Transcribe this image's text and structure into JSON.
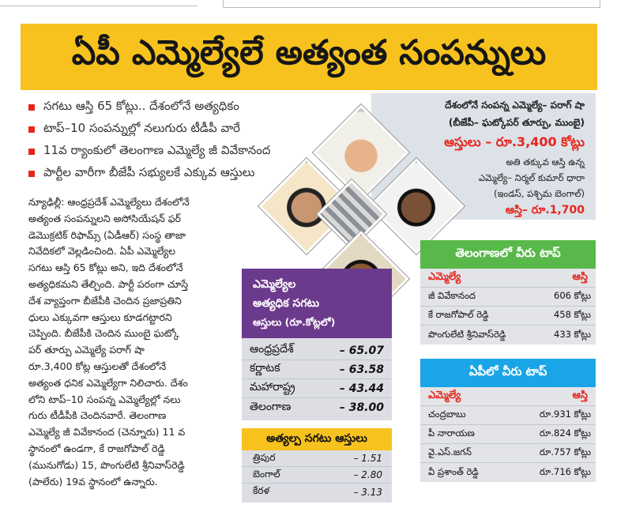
{
  "headline": "ఏపీ ఎమ్మెల్యేలే అత్యంత సంపన్నులు",
  "bullets": [
    "సగటు ఆస్తి 65 కోట్లు.. దేశంలోనే అత్యధికం",
    "టాప్‌–10 సంపన్నుల్లో నలుగురు టీడీపీ వారే",
    "11వ ర్యాంకులో తెలంగాణ ఎమ్మెల్యే జీ వివేకానంద",
    "పార్టీల వారీగా బీజేపీ సభ్యులకే ఎక్కువ ఆస్తులు"
  ],
  "article_lines": [
    "న్యూఢిల్లీ: ఆంధ్రప్రదేశ్‌ ఎమ్మెల్యేలు దేశంలోనే",
    "అత్యంత సంపన్నులని అసోసియేషన్‌ ఫర్‌",
    "డెమొక్రటిక్‌ రిఫామ్స్‌ (ఏడీఆర్‌) సంస్థ తాజా",
    "నివేదికలో వెల్లడించింది. ఏపీ ఎమ్మెల్యేల",
    "సగటు ఆస్తి 65 కోట్లు అని, ఇది దేశంలోనే",
    "అత్యధికమని తేల్చింది. పార్టీ పరంగా చూస్తే",
    "దేశ వ్యాప్తంగా బీజేపీకి చెందిన ప్రజాప్రతిని",
    "ధులు ఎక్కువగా ఆస్తులు కూడగట్టారని",
    "చెప్పింది. బీజేపీకి చెందిన ముంబై ఘట్కో",
    "పర్‌ తూర్పు ఎమ్మెల్యే పరాగ్‌ షా",
    "రూ.3,400 కోట్ల ఆస్తులతో దేశంలోనే",
    "అత్యంత ధనిక ఎమ్మెల్యేగా నిలిచారు. దేశం",
    "లోని టాప్‌–10 సంపన్న ఎమ్మెల్యేల్లో నలు",
    "గురు టీడీపీకి చెందినవారే. తెలంగాణ",
    "ఎమ్మెల్యే జీ వివేకానంద (చెన్నూరు) 11 వ",
    "స్థానంలో ఉండగా, కే రాజగోపాల్‌ రెడ్డి",
    "(మునుగోడు) 15, పొంగులేటి శ్రీనివాస్‌రెడ్డి",
    "(పాలేరు) 19వ స్థానంలో ఉన్నారు."
  ],
  "richest_box": {
    "line1": "దేశంలోనే సంపన్న ఎమ్మెల్యే– పరాగ్‌ షా",
    "line2": "(బీజేపీ– ఘట్కోపర్‌ తూర్పు, ముంబై)",
    "amount1": "ఆస్తులు – రూ.3,400 కోట్లు",
    "line4": "అతి తక్కువ ఆస్తి ఉన్న",
    "line5": "ఎమ్మెల్యే– నిర్మల్‌ కుమార్‌ ధారా",
    "line6": "(ఇండస్, పశ్చిమ బెంగాల్‌)",
    "amount2": "ఆస్తి– రూ.1,700"
  },
  "avg_box": {
    "title_lines": [
      "ఎమ్మెల్యేల",
      "అత్యధిక సగటు",
      "ఆస్తులు (రూ.కోట్లలో)"
    ],
    "rows": [
      {
        "state": "ఆంధ్రప్రదేశ్‌",
        "value": "– 65.07"
      },
      {
        "state": "కర్ణాటక",
        "value": "– 63.58"
      },
      {
        "state": "మహారాష్ట్ర",
        "value": "– 43.44"
      },
      {
        "state": "తెలంగాణ",
        "value": "– 38.00"
      }
    ]
  },
  "low_box": {
    "title": "అత్యల్ప సగటు ఆస్తులు",
    "rows": [
      {
        "state": "త్రిపుర",
        "value": "– 1.51"
      },
      {
        "state": "బెంగాల్‌",
        "value": "– 2.80"
      },
      {
        "state": "కేరళ",
        "value": "– 3.13"
      }
    ]
  },
  "telangana_top": {
    "title": "తెలంగాణలో వీరు టాప్‌",
    "col_mla": "ఎమ్మెల్యే",
    "col_asset": "ఆస్తి",
    "rows": [
      {
        "name": "జీ వివేకానంద",
        "asset": "606 కోట్లు"
      },
      {
        "name": "కే రాజగోపాల్‌ రెడ్డి",
        "asset": "458 కోట్లు"
      },
      {
        "name": "పొంగులేటి శ్రీనివాస్‌రెడ్డి",
        "asset": "433 కోట్లు"
      }
    ]
  },
  "ap_top": {
    "title": "ఏపీలో వీరు టాప్‌",
    "col_mla": "ఎమ్మెల్యే",
    "col_asset": "ఆస్తి",
    "rows": [
      {
        "name": "చంద్రబాబు",
        "asset": "రూ.931 కోట్లు"
      },
      {
        "name": "పీ నారాయణ",
        "asset": "రూ.824 కోట్లు"
      },
      {
        "name": "వై.ఎస్‌.జగన్‌",
        "asset": "రూ.757 కోట్లు"
      },
      {
        "name": "వీ ప్రశాంత్‌ రెడ్డి",
        "asset": "రూ.716 కోట్లు"
      }
    ]
  },
  "colors": {
    "banner": "#f7c21e",
    "bullet": "#e6261c",
    "purple": "#6b3a8c",
    "green": "#59b84a",
    "blue": "#1aa5e8",
    "red_text": "#e6261c"
  }
}
